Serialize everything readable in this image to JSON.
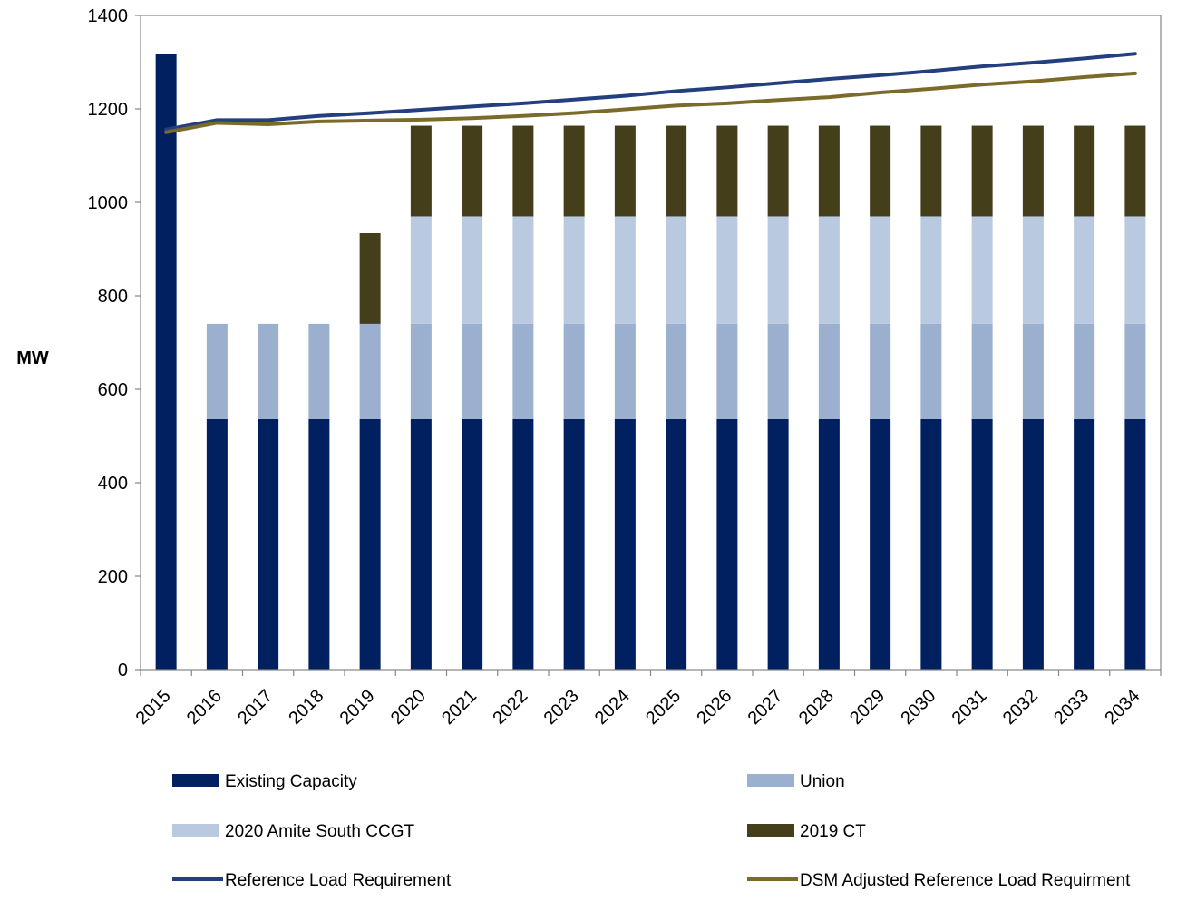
{
  "chart_data": {
    "type": "bar",
    "stacked": true,
    "categories": [
      "2015",
      "2016",
      "2017",
      "2018",
      "2019",
      "2020",
      "2021",
      "2022",
      "2023",
      "2024",
      "2025",
      "2026",
      "2027",
      "2028",
      "2029",
      "2030",
      "2031",
      "2032",
      "2033",
      "2034"
    ],
    "ylabel": "MW",
    "xlabel": "",
    "title": "",
    "ylim": [
      0,
      1400
    ],
    "yticks": [
      "0",
      "200",
      "400",
      "600",
      "800",
      "1000",
      "1200",
      "1400"
    ],
    "grid": false,
    "legend_position": "bottom",
    "series": [
      {
        "name": "Existing Capacity",
        "kind": "bar",
        "color": "#002060",
        "values": [
          1318,
          536,
          536,
          536,
          536,
          536,
          536,
          536,
          536,
          536,
          536,
          536,
          536,
          536,
          536,
          536,
          536,
          536,
          536,
          536
        ]
      },
      {
        "name": "Union",
        "kind": "bar",
        "color": "#9BAFCE",
        "values": [
          0,
          204,
          204,
          204,
          204,
          204,
          204,
          204,
          204,
          204,
          204,
          204,
          204,
          204,
          204,
          204,
          204,
          204,
          204,
          204
        ]
      },
      {
        "name": "2020 Amite South CCGT",
        "kind": "bar",
        "color": "#B9C9E0",
        "values": [
          0,
          0,
          0,
          0,
          0,
          230,
          230,
          230,
          230,
          230,
          230,
          230,
          230,
          230,
          230,
          230,
          230,
          230,
          230,
          230
        ]
      },
      {
        "name": "2019 CT",
        "kind": "bar",
        "color": "#453E1B",
        "values": [
          0,
          0,
          0,
          0,
          194,
          194,
          194,
          194,
          194,
          194,
          194,
          194,
          194,
          194,
          194,
          194,
          194,
          194,
          194,
          194
        ]
      },
      {
        "name": "Reference Load Requirement",
        "kind": "line",
        "color": "#243F7F",
        "values": [
          1156,
          1176,
          1176,
          1185,
          1191,
          1198,
          1205,
          1212,
          1220,
          1228,
          1238,
          1246,
          1255,
          1264,
          1272,
          1281,
          1291,
          1299,
          1308,
          1318
        ]
      },
      {
        "name": "DSM Adjusted Reference Load Requirment",
        "kind": "line",
        "color": "#7B6B2B",
        "values": [
          1150,
          1170,
          1167,
          1173,
          1175,
          1177,
          1180,
          1185,
          1191,
          1199,
          1207,
          1212,
          1219,
          1225,
          1235,
          1243,
          1252,
          1259,
          1268,
          1276
        ]
      }
    ]
  }
}
